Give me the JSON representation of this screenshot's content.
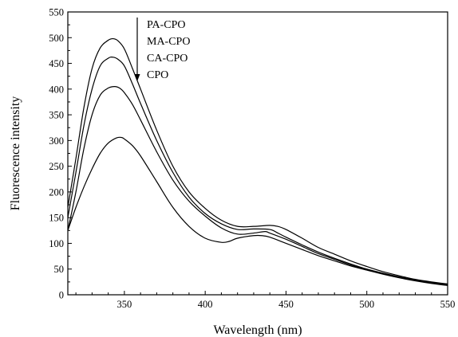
{
  "chart_data": {
    "type": "line",
    "xlabel": "Wavelength (nm)",
    "ylabel": "Fluorescence intensity",
    "xlim": [
      315,
      550
    ],
    "ylim": [
      0,
      550
    ],
    "x_ticks": [
      350,
      400,
      450,
      500,
      550
    ],
    "y_ticks": [
      0,
      50,
      100,
      150,
      200,
      250,
      300,
      350,
      400,
      450,
      500,
      550
    ],
    "grid": false,
    "legend": {
      "placement": "top-left inside, with downward arrow",
      "entries": [
        "PA-CPO",
        "MA-CPO",
        "CA-CPO",
        "CPO"
      ]
    },
    "series": [
      {
        "name": "PA-CPO",
        "x": [
          315,
          320,
          325,
          330,
          335,
          340,
          343,
          346,
          350,
          355,
          360,
          370,
          380,
          390,
          400,
          410,
          420,
          430,
          440,
          445,
          450,
          460,
          470,
          480,
          490,
          500,
          510,
          520,
          530,
          540,
          550
        ],
        "y": [
          170,
          265,
          365,
          440,
          480,
          495,
          498,
          494,
          478,
          440,
          400,
          320,
          250,
          200,
          168,
          145,
          133,
          133,
          135,
          133,
          127,
          110,
          92,
          79,
          66,
          55,
          45,
          37,
          30,
          25,
          21
        ]
      },
      {
        "name": "MA-CPO",
        "x": [
          315,
          320,
          325,
          330,
          335,
          340,
          343,
          346,
          350,
          355,
          360,
          370,
          380,
          390,
          400,
          410,
          420,
          430,
          440,
          445,
          450,
          460,
          470,
          480,
          490,
          500,
          510,
          520,
          530,
          540,
          550
        ],
        "y": [
          150,
          238,
          330,
          400,
          445,
          460,
          462,
          458,
          445,
          410,
          372,
          300,
          238,
          190,
          158,
          138,
          127,
          128,
          127,
          120,
          112,
          97,
          83,
          71,
          60,
          50,
          42,
          35,
          29,
          24,
          20
        ]
      },
      {
        "name": "CA-CPO",
        "x": [
          315,
          320,
          325,
          330,
          335,
          340,
          344,
          347,
          350,
          355,
          360,
          370,
          380,
          390,
          400,
          410,
          420,
          430,
          437,
          440,
          450,
          460,
          470,
          480,
          490,
          500,
          510,
          520,
          530,
          540,
          550
        ],
        "y": [
          125,
          200,
          285,
          350,
          388,
          402,
          405,
          402,
          393,
          370,
          340,
          278,
          223,
          182,
          153,
          130,
          118,
          120,
          123,
          120,
          108,
          94,
          80,
          69,
          58,
          49,
          41,
          34,
          28,
          23,
          19
        ]
      },
      {
        "name": "CPO",
        "x": [
          315,
          320,
          325,
          330,
          335,
          340,
          345,
          348,
          350,
          355,
          360,
          370,
          380,
          390,
          400,
          410,
          415,
          420,
          430,
          435,
          440,
          450,
          460,
          470,
          480,
          490,
          500,
          510,
          520,
          530,
          540,
          550
        ],
        "y": [
          125,
          170,
          210,
          245,
          275,
          295,
          305,
          306,
          303,
          290,
          270,
          220,
          170,
          133,
          110,
          102,
          104,
          110,
          115,
          115,
          112,
          100,
          88,
          76,
          66,
          56,
          48,
          40,
          33,
          27,
          22,
          18
        ]
      }
    ]
  }
}
